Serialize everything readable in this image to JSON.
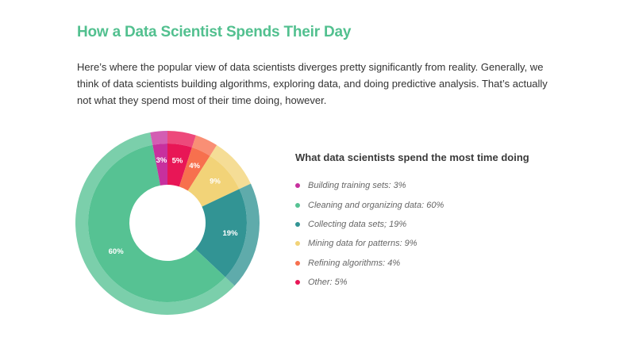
{
  "header": {
    "title": "How a Data Scientist Spends Their Day",
    "intro": "Here’s where the popular view of data scientists diverges pretty significantly from reality. Generally, we think of data scientists building algorithms, exploring data, and doing predictive analysis. That’s actually not what they spend most of their time doing, however."
  },
  "chart_data": {
    "type": "pie",
    "title": "What data scientists spend the most time doing",
    "slices": [
      {
        "label": "Building training sets: 3%",
        "value": 3,
        "display": "3%",
        "color": "#c7309e"
      },
      {
        "label": "Cleaning and organizing data: 60%",
        "value": 60,
        "display": "60%",
        "color": "#56c293"
      },
      {
        "label": "Collecting data sets; 19%",
        "value": 19,
        "display": "19%",
        "color": "#329494"
      },
      {
        "label": "Mining data for patterns: 9%",
        "value": 9,
        "display": "9%",
        "color": "#f2d378"
      },
      {
        "label": "Refining algorithms: 4%",
        "value": 4,
        "display": "4%",
        "color": "#f7704e"
      },
      {
        "label": "Other: 5%",
        "value": 5,
        "display": "5%",
        "color": "#e81656"
      }
    ],
    "clockwise_draw_order": [
      "Other: 5%",
      "Refining algorithms: 4%",
      "Mining data for patterns: 9%",
      "Collecting data sets; 19%",
      "Cleaning and organizing data: 60%",
      "Building training sets: 3%"
    ],
    "legend_position": "right"
  }
}
